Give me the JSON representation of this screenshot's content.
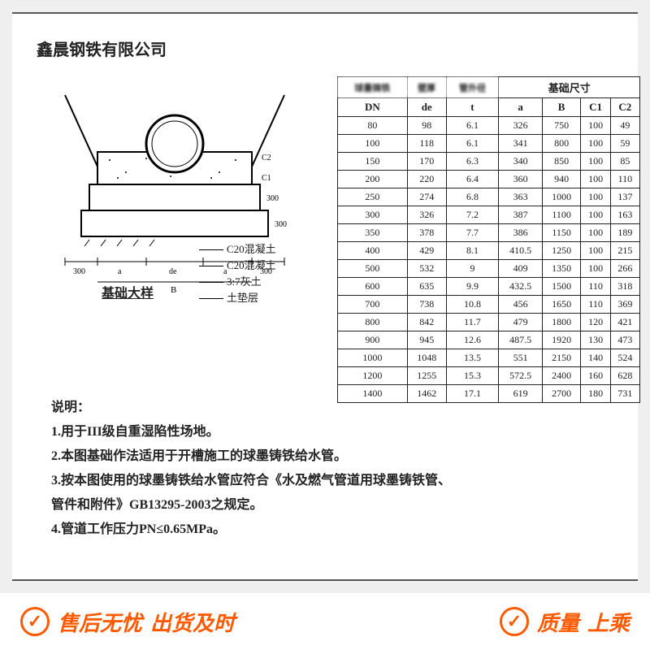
{
  "company": "鑫晨钢铁有限公司",
  "diagram": {
    "title": "基础大样",
    "dims": {
      "left300": "300",
      "de": "de",
      "a": "a",
      "B": "B",
      "right300": "300",
      "v300a": "300",
      "v300b": "300"
    },
    "legend": [
      {
        "label": "C20混凝土"
      },
      {
        "label": "C20混凝土"
      },
      {
        "label": "3:7灰土"
      },
      {
        "label": "土垫层"
      }
    ]
  },
  "notes": {
    "hdr": "说明：",
    "items": [
      "1.用于III级自重湿陷性场地。",
      "2.本图基础作法适用于开槽施工的球墨铸铁给水管。",
      "3.按本图使用的球墨铸铁给水管应符合《水及燃气管道用球墨铸铁管、",
      "管件和附件》GB13295-2003之规定。",
      "4.管道工作压力PN≤0.65MPa。"
    ]
  },
  "table": {
    "group_header": "基础尺寸",
    "blur1": "球墨铸铁",
    "blur2": "壁厚",
    "blur3": "管外径",
    "cols": [
      "DN",
      "de",
      "t",
      "a",
      "B",
      "C1",
      "C2"
    ],
    "rows": [
      [
        "80",
        "98",
        "6.1",
        "326",
        "750",
        "100",
        "49"
      ],
      [
        "100",
        "118",
        "6.1",
        "341",
        "800",
        "100",
        "59"
      ],
      [
        "150",
        "170",
        "6.3",
        "340",
        "850",
        "100",
        "85"
      ],
      [
        "200",
        "220",
        "6.4",
        "360",
        "940",
        "100",
        "110"
      ],
      [
        "250",
        "274",
        "6.8",
        "363",
        "1000",
        "100",
        "137"
      ],
      [
        "300",
        "326",
        "7.2",
        "387",
        "1100",
        "100",
        "163"
      ],
      [
        "350",
        "378",
        "7.7",
        "386",
        "1150",
        "100",
        "189"
      ],
      [
        "400",
        "429",
        "8.1",
        "410.5",
        "1250",
        "100",
        "215"
      ],
      [
        "500",
        "532",
        "9",
        "409",
        "1350",
        "100",
        "266"
      ],
      [
        "600",
        "635",
        "9.9",
        "432.5",
        "1500",
        "110",
        "318"
      ],
      [
        "700",
        "738",
        "10.8",
        "456",
        "1650",
        "110",
        "369"
      ],
      [
        "800",
        "842",
        "11.7",
        "479",
        "1800",
        "120",
        "421"
      ],
      [
        "900",
        "945",
        "12.6",
        "487.5",
        "1920",
        "130",
        "473"
      ],
      [
        "1000",
        "1048",
        "13.5",
        "551",
        "2150",
        "140",
        "524"
      ],
      [
        "1200",
        "1255",
        "15.3",
        "572.5",
        "2400",
        "160",
        "628"
      ],
      [
        "1400",
        "1462",
        "17.1",
        "619",
        "2700",
        "180",
        "731"
      ]
    ]
  },
  "bottom": {
    "left1": "售后无忧",
    "left2": "出货及时",
    "right1": "质量",
    "right2": "上乘"
  }
}
